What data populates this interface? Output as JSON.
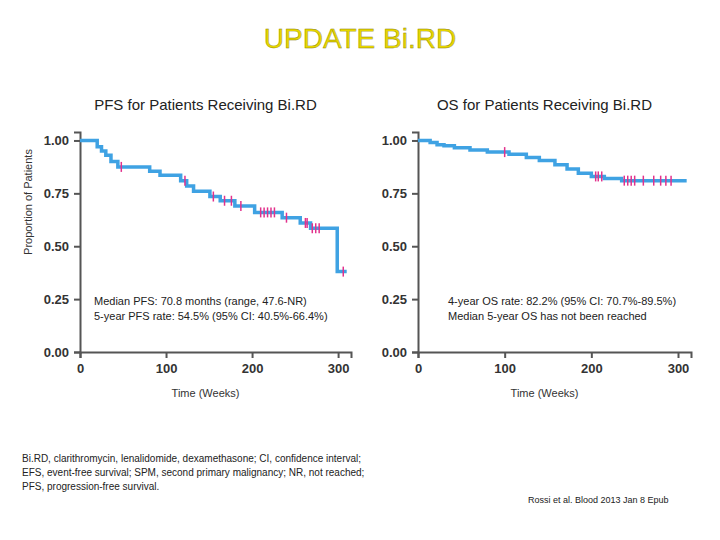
{
  "slide": {
    "title": "UPDATE Bi.RD",
    "footnote": [
      "Bi.RD, clarithromycin, lenalidomide, dexamethasone; CI, confidence interval;",
      "EFS, event-free survival; SPM, second primary malignancy; NR, not reached;",
      "PFS, progression-free survival."
    ],
    "source": "Rossi et al. Blood 2013 Jan 8 Epub"
  },
  "chart_data": [
    {
      "type": "step",
      "title": "PFS for Patients Receiving Bi.RD",
      "x_label": "Time (Weeks)",
      "y_label": "Proportion of Patients",
      "annotations": [
        "Median PFS: 70.8 months (range, 47.6-NR)",
        "5-year PFS rate: 54.5% (95% CI: 40.5%-66.4%)"
      ],
      "xlim": [
        0,
        315
      ],
      "xticks": [
        0,
        100,
        200,
        300
      ],
      "ylim": [
        0,
        1.04
      ],
      "yticks": [
        {
          "value": 0,
          "label": "0.00"
        },
        {
          "value": 0.25,
          "label": "0.25"
        },
        {
          "value": 0.5,
          "label": "0.50"
        },
        {
          "value": 0.75,
          "label": "0.75"
        },
        {
          "value": 1,
          "label": "1.00"
        }
      ],
      "grid": false,
      "series": [
        {
          "type": "step",
          "color": "#3fa2e3",
          "x": [
            0,
            20,
            25,
            30,
            36,
            44,
            81,
            93,
            117,
            124,
            132,
            151,
            163,
            180,
            203,
            235,
            256,
            268,
            299,
            310
          ],
          "values": [
            1.0,
            0.97,
            0.95,
            0.93,
            0.9,
            0.875,
            0.855,
            0.835,
            0.81,
            0.785,
            0.76,
            0.735,
            0.715,
            0.69,
            0.66,
            0.635,
            0.61,
            0.585,
            0.38,
            0.38
          ]
        },
        {
          "type": "scatter",
          "marker": "tick",
          "color": "#e2318c",
          "x": [
            48,
            122,
            155,
            168,
            176,
            187,
            210,
            214,
            218,
            222,
            226,
            240,
            262,
            264,
            270,
            274,
            278,
            306
          ],
          "values": [
            0.875,
            0.81,
            0.735,
            0.715,
            0.715,
            0.69,
            0.66,
            0.66,
            0.66,
            0.66,
            0.66,
            0.635,
            0.61,
            0.61,
            0.585,
            0.585,
            0.585,
            0.38
          ]
        }
      ]
    },
    {
      "type": "step",
      "title": "OS for Patients Receiving Bi.RD",
      "x_label": "Time (Weeks)",
      "annotations": [
        "4-year OS rate: 82.2% (95% CI: 70.7%-89.5%)",
        "Median 5-year OS has not been reached"
      ],
      "xlim": [
        0,
        315
      ],
      "xticks": [
        0,
        100,
        200,
        300
      ],
      "ylim": [
        0,
        1.04
      ],
      "yticks": [
        {
          "value": 0,
          "label": "0.00"
        },
        {
          "value": 0.25,
          "label": "0.25"
        },
        {
          "value": 0.5,
          "label": "0.50"
        },
        {
          "value": 0.75,
          "label": "0.75"
        },
        {
          "value": 1,
          "label": "1.00"
        }
      ],
      "grid": false,
      "series": [
        {
          "type": "step",
          "color": "#3fa2e3",
          "x": [
            0,
            14,
            22,
            30,
            42,
            60,
            80,
            105,
            125,
            140,
            158,
            172,
            185,
            200,
            215,
            235,
            310
          ],
          "values": [
            1.0,
            0.99,
            0.98,
            0.975,
            0.965,
            0.955,
            0.945,
            0.935,
            0.92,
            0.905,
            0.885,
            0.865,
            0.845,
            0.83,
            0.82,
            0.81,
            0.81
          ]
        },
        {
          "type": "scatter",
          "marker": "tick",
          "color": "#e2318c",
          "x": [
            100,
            205,
            208,
            212,
            238,
            242,
            246,
            250,
            260,
            272,
            280,
            286,
            292
          ],
          "values": [
            0.945,
            0.83,
            0.83,
            0.83,
            0.81,
            0.81,
            0.81,
            0.81,
            0.81,
            0.81,
            0.81,
            0.81,
            0.81
          ]
        }
      ]
    }
  ]
}
